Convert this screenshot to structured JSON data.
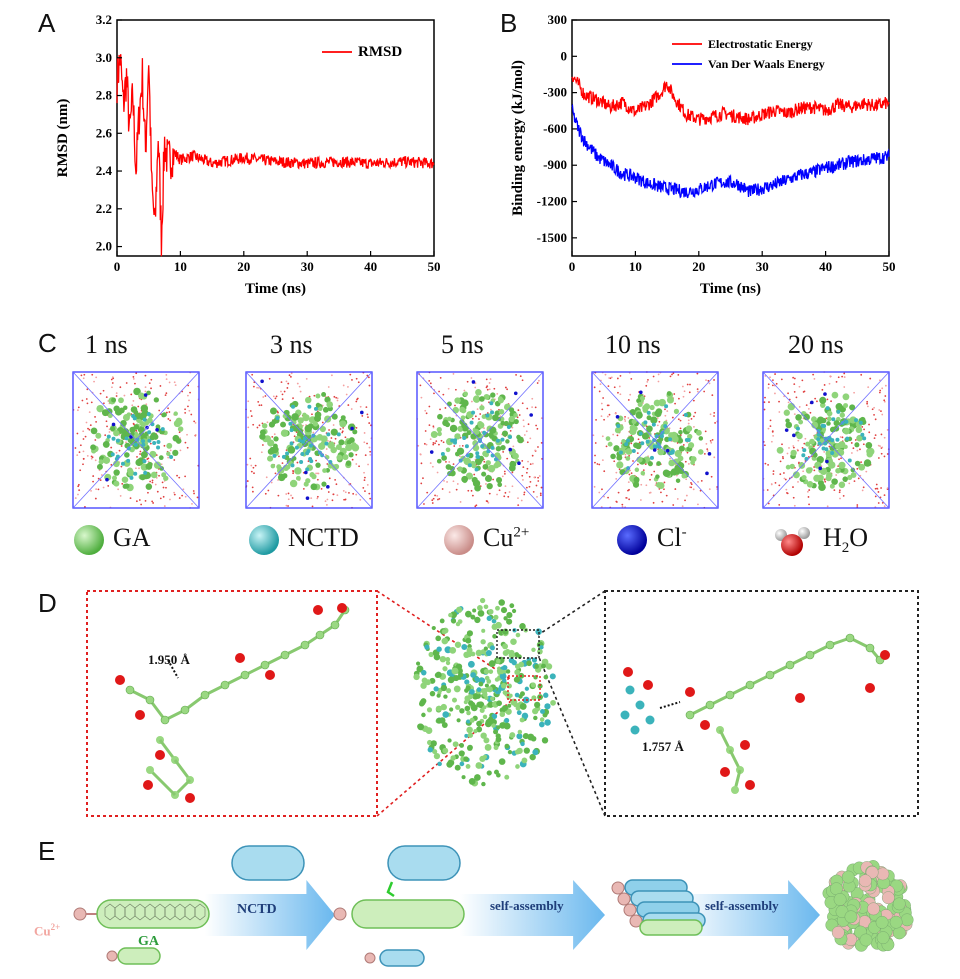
{
  "panels": {
    "A": "A",
    "B": "B",
    "C": "C",
    "D": "D",
    "E": "E"
  },
  "chart_data": [
    {
      "type": "line",
      "id": "A",
      "title": "",
      "xlabel": "Time (ns)",
      "ylabel": "RMSD (nm)",
      "xlim": [
        0,
        50
      ],
      "ylim": [
        1.95,
        3.2
      ],
      "xticks": [
        "0",
        "10",
        "20",
        "30",
        "40",
        "50"
      ],
      "yticks": [
        "2.0",
        "2.2",
        "2.4",
        "2.6",
        "2.8",
        "3.0",
        "3.2"
      ],
      "legend": {
        "position": "top-right",
        "entries": [
          "RMSD"
        ]
      },
      "series": [
        {
          "name": "RMSD",
          "color": "#ff0000",
          "x": [
            0,
            0.5,
            1,
            1.5,
            2,
            2.5,
            3,
            3.5,
            4,
            4.5,
            5,
            5.5,
            6,
            6.5,
            7,
            7.5,
            8,
            9,
            10,
            12,
            15,
            20,
            25,
            30,
            35,
            40,
            45,
            50
          ],
          "values": [
            2.88,
            3.0,
            2.75,
            2.9,
            2.6,
            2.8,
            2.4,
            2.7,
            2.9,
            2.5,
            3.0,
            2.3,
            2.1,
            2.6,
            2.05,
            2.55,
            2.45,
            2.5,
            2.46,
            2.48,
            2.44,
            2.47,
            2.45,
            2.44,
            2.45,
            2.44,
            2.45,
            2.44
          ]
        }
      ]
    },
    {
      "type": "line",
      "id": "B",
      "title": "",
      "xlabel": "Time (ns)",
      "ylabel": "Binding energy (kJ/mol)",
      "xlim": [
        0,
        50
      ],
      "ylim": [
        -1650,
        300
      ],
      "xticks": [
        "0",
        "10",
        "20",
        "30",
        "40",
        "50"
      ],
      "yticks": [
        "300",
        "0",
        "-300",
        "-600",
        "-900",
        "-1200",
        "-1500"
      ],
      "legend": {
        "position": "top-right",
        "entries": [
          "Electrostatic Energy",
          "Van Der Waals Energy"
        ]
      },
      "series": [
        {
          "name": "Electrostatic Energy",
          "color": "#ff0000",
          "x": [
            0,
            2,
            4,
            6,
            8,
            10,
            12,
            14,
            15,
            16,
            18,
            20,
            22,
            24,
            26,
            28,
            30,
            32,
            34,
            36,
            38,
            40,
            42,
            44,
            46,
            48,
            50
          ],
          "values": [
            -150,
            -320,
            -360,
            -420,
            -380,
            -460,
            -400,
            -300,
            -220,
            -330,
            -480,
            -520,
            -500,
            -470,
            -500,
            -520,
            -480,
            -450,
            -470,
            -430,
            -420,
            -450,
            -400,
            -420,
            -390,
            -410,
            -380
          ]
        },
        {
          "name": "Van Der Waals Energy",
          "color": "#0000ff",
          "x": [
            0,
            1,
            2,
            4,
            6,
            8,
            10,
            12,
            14,
            16,
            18,
            20,
            22,
            24,
            26,
            28,
            30,
            32,
            34,
            36,
            38,
            40,
            42,
            44,
            46,
            48,
            50
          ],
          "values": [
            -450,
            -600,
            -700,
            -830,
            -900,
            -970,
            -1000,
            -1050,
            -1080,
            -1100,
            -1120,
            -1100,
            -1060,
            -1040,
            -1050,
            -1120,
            -1090,
            -1060,
            -1020,
            -980,
            -960,
            -920,
            -900,
            -870,
            -860,
            -840,
            -830
          ]
        }
      ]
    }
  ],
  "panel_c": {
    "times": [
      "1 ns",
      "3 ns",
      "5 ns",
      "10 ns",
      "20 ns"
    ],
    "legend": [
      {
        "name": "GA",
        "color": "#7fd06a"
      },
      {
        "name": "NCTD",
        "color": "#4fc3c8"
      },
      {
        "base": "Cu",
        "sup": "2+",
        "color": "#e9b8b4"
      },
      {
        "base": "Cl",
        "sup": "-",
        "color": "#0000cc"
      },
      {
        "base": "H",
        "sub": "2",
        "tail": "O",
        "color": "#cc0000"
      }
    ]
  },
  "panel_d": {
    "left_distance": "1.950 Å",
    "right_distance": "1.757 Å"
  },
  "panel_e": {
    "cu_label": "Cu",
    "cu_sup": "2+",
    "ga_label": "GA",
    "step1": "NCTD",
    "step2": "self-assembly",
    "step3": "self-assembly"
  }
}
